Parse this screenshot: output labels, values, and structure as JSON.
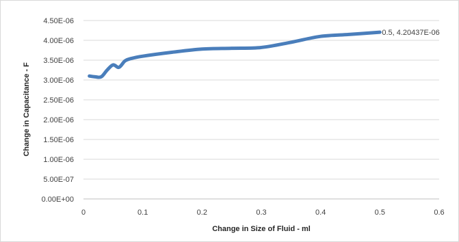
{
  "chart_data": {
    "type": "line",
    "title": "",
    "xlabel": "Change in Size of Fluid - ml",
    "ylabel": "Change in Capacitance - F",
    "xlim": [
      0,
      0.6
    ],
    "ylim": [
      0,
      4.5e-06
    ],
    "x_ticks": [
      "0",
      "0.1",
      "0.2",
      "0.3",
      "0.4",
      "0.5",
      "0.6"
    ],
    "y_ticks": [
      "0.00E+00",
      "5.00E-07",
      "1.00E-06",
      "1.50E-06",
      "2.00E-06",
      "2.50E-06",
      "3.00E-06",
      "3.50E-06",
      "4.00E-06",
      "4.50E-06"
    ],
    "grid": "horizontal",
    "legend": "none",
    "series": [
      {
        "color": "#4a7ebb",
        "x": [
          0.01,
          0.02,
          0.03,
          0.04,
          0.05,
          0.06,
          0.07,
          0.08,
          0.1,
          0.15,
          0.2,
          0.25,
          0.3,
          0.35,
          0.4,
          0.45,
          0.5
        ],
        "y": [
          3.1e-06,
          3.08e-06,
          3.08e-06,
          3.25e-06,
          3.38e-06,
          3.32e-06,
          3.48e-06,
          3.54e-06,
          3.6e-06,
          3.7e-06,
          3.78e-06,
          3.8e-06,
          3.82e-06,
          3.95e-06,
          4.1e-06,
          4.15e-06,
          4.20437e-06
        ]
      }
    ],
    "annotations": [
      {
        "text": "0.5, 4.20437E-06",
        "x": 0.5,
        "y": 4.20437e-06
      }
    ]
  }
}
